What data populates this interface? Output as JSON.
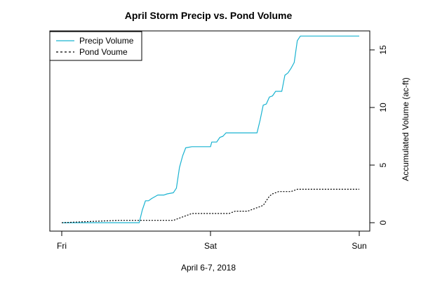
{
  "chart_data": {
    "type": "line",
    "title": "April Storm Precip vs. Pond Volume",
    "xlabel": "April 6-7, 2018",
    "ylabel": "Accumulated Volume (ac-ft)",
    "x_ticks": [
      "Fri",
      "Sat",
      "Sun"
    ],
    "x_tick_values": [
      0,
      24,
      48
    ],
    "x_unit": "hours since Fri 00:00",
    "xlim": [
      0,
      48
    ],
    "y_ticks": [
      0,
      5,
      10,
      15
    ],
    "ylim": [
      -0.5,
      16.8
    ],
    "y_axis_side": "right",
    "legend_position": "top-left",
    "series": [
      {
        "name": "Precip Volume",
        "color": "#1ab3d1",
        "style": "solid",
        "x": [
          0,
          8,
          12.5,
          13,
          13.5,
          14,
          14.5,
          15.5,
          16,
          16.5,
          17,
          18,
          18.5,
          19,
          19.5,
          20,
          21,
          22,
          24,
          24.2,
          25,
          25.5,
          26,
          26.5,
          27,
          27.5,
          28,
          29,
          30,
          31.5,
          32,
          32.5,
          33,
          33.5,
          34,
          34.5,
          35,
          35.5,
          36,
          36.5,
          37,
          37.5,
          38,
          38.5,
          39,
          40,
          41,
          42,
          48
        ],
        "y": [
          0,
          0,
          0,
          1.1,
          1.9,
          1.9,
          2.1,
          2.4,
          2.4,
          2.4,
          2.5,
          2.6,
          3.0,
          4.8,
          5.8,
          6.5,
          6.6,
          6.6,
          6.6,
          7.0,
          7.0,
          7.4,
          7.5,
          7.8,
          7.8,
          7.8,
          7.8,
          7.8,
          7.8,
          7.8,
          8.9,
          10.2,
          10.3,
          10.9,
          11.0,
          11.4,
          11.4,
          11.4,
          12.8,
          13.0,
          13.4,
          13.9,
          15.8,
          16.2,
          16.2,
          16.2,
          16.2,
          16.2,
          16.2
        ]
      },
      {
        "name": "Pond Voume",
        "color": "#000000",
        "style": "dashed",
        "x": [
          0,
          9,
          18,
          19.5,
          20,
          21,
          22,
          24,
          27,
          28,
          30,
          31,
          32.5,
          33.5,
          34,
          35,
          37,
          38,
          48
        ],
        "y": [
          0,
          0.2,
          0.2,
          0.5,
          0.6,
          0.8,
          0.8,
          0.8,
          0.8,
          1.0,
          1.0,
          1.2,
          1.5,
          2.3,
          2.5,
          2.7,
          2.7,
          2.9,
          2.9
        ]
      }
    ]
  }
}
